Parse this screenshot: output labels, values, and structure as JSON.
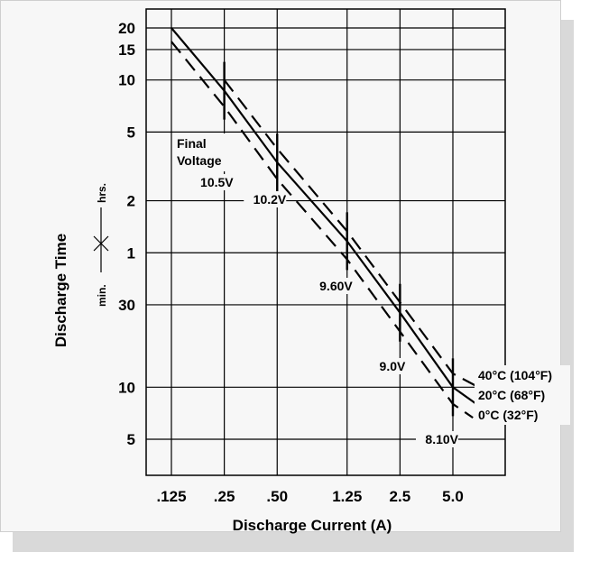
{
  "chart_data": {
    "type": "line",
    "xlabel": "Discharge Current (A)",
    "ylabel": "Discharge Time",
    "x_scale": "log",
    "y_scale": "log",
    "x_ticks": [
      {
        "value": 0.125,
        "label": ".125"
      },
      {
        "value": 0.25,
        "label": ".25"
      },
      {
        "value": 0.5,
        "label": ".50"
      },
      {
        "value": 1.25,
        "label": "1.25"
      },
      {
        "value": 2.5,
        "label": "2.5"
      },
      {
        "value": 5.0,
        "label": "5.0"
      }
    ],
    "y_ticks": [
      {
        "minutes": 300,
        "label": "5"
      },
      {
        "minutes": 600,
        "label": "10"
      },
      {
        "minutes": 1800,
        "label": "30"
      },
      {
        "minutes": 3600,
        "label": "1"
      },
      {
        "minutes": 7200,
        "label": "2"
      },
      {
        "minutes": 18000,
        "label": "5"
      },
      {
        "minutes": 36000,
        "label": "10"
      },
      {
        "minutes": 54000,
        "label": "15"
      },
      {
        "minutes": 72000,
        "label": "20"
      }
    ],
    "y_unit_labels": {
      "upper": "hrs.",
      "lower": "min."
    },
    "grid": true,
    "series": [
      {
        "name": "40°C (104°F)",
        "style": "dashed",
        "x": [
          0.25,
          0.5,
          1.25,
          2.5,
          5.0,
          7.0
        ],
        "y_minutes": [
          36000,
          14400,
          4800,
          1860,
          720,
          600
        ]
      },
      {
        "name": "20°C (68°F)",
        "style": "solid",
        "x": [
          0.125,
          0.25,
          0.5,
          1.25,
          2.5,
          5.0,
          6.8
        ],
        "y_minutes": [
          72000,
          31200,
          12000,
          4200,
          1620,
          600,
          480
        ]
      },
      {
        "name": "0°C (32°F)",
        "style": "dashed",
        "x": [
          0.125,
          0.25,
          0.5,
          1.25,
          2.5,
          5.0,
          6.5
        ],
        "y_minutes": [
          60000,
          25200,
          9600,
          3300,
          1260,
          480,
          400
        ]
      }
    ],
    "final_voltage_title": [
      "Final",
      "Voltage"
    ],
    "final_voltage_markers": [
      {
        "label": "10.5V",
        "x": 0.25
      },
      {
        "label": "10.2V",
        "x": 0.5
      },
      {
        "label": "9.60V",
        "x": 1.25
      },
      {
        "label": "9.0V",
        "x": 2.5
      },
      {
        "label": "8.10V",
        "x": 5.0
      }
    ]
  }
}
